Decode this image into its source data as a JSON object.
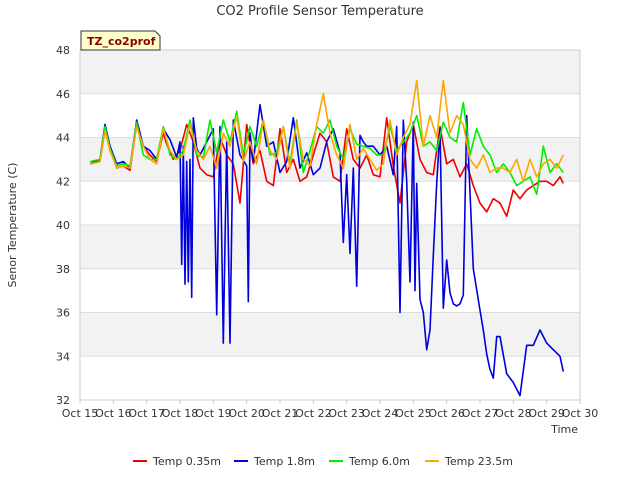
{
  "chart_data": {
    "type": "line",
    "title": "CO2 Profile Sensor Temperature",
    "xlabel": "Time",
    "ylabel": "Senor Temperature (C)",
    "badge": "TZ_co2prof",
    "xlim": [
      0,
      15
    ],
    "ylim": [
      32,
      48
    ],
    "x_ticks": [
      "Oct 15",
      "Oct 16",
      "Oct 17",
      "Oct 18",
      "Oct 19",
      "Oct 20",
      "Oct 21",
      "Oct 22",
      "Oct 23",
      "Oct 24",
      "Oct 25",
      "Oct 26",
      "Oct 27",
      "Oct 28",
      "Oct 29",
      "Oct 30"
    ],
    "y_ticks": [
      32,
      34,
      36,
      38,
      40,
      42,
      44,
      46,
      48
    ],
    "grid": true,
    "legend_position": "bottom",
    "series": [
      {
        "name": "Temp 0.35m",
        "color": "#ee0000",
        "x": [
          0.3,
          0.6,
          0.75,
          0.9,
          1.1,
          1.3,
          1.5,
          1.7,
          1.9,
          2.1,
          2.3,
          2.5,
          2.6,
          2.8,
          3.0,
          3.2,
          3.4,
          3.6,
          3.8,
          4.0,
          4.2,
          4.4,
          4.6,
          4.8,
          5.0,
          5.2,
          5.4,
          5.6,
          5.8,
          6.0,
          6.2,
          6.4,
          6.6,
          6.8,
          7.0,
          7.2,
          7.4,
          7.6,
          7.8,
          8.0,
          8.2,
          8.4,
          8.6,
          8.8,
          9.0,
          9.2,
          9.4,
          9.6,
          9.8,
          10.0,
          10.2,
          10.4,
          10.6,
          10.8,
          11.0,
          11.2,
          11.4,
          11.6,
          11.8,
          12.0,
          12.2,
          12.4,
          12.6,
          12.8,
          13.0,
          13.2,
          13.4,
          13.6,
          13.8,
          14.0,
          14.2,
          14.4,
          14.5
        ],
        "y": [
          42.8,
          42.9,
          44.4,
          43.6,
          42.6,
          42.7,
          42.5,
          44.6,
          43.6,
          43.2,
          42.9,
          44.2,
          43.7,
          43.0,
          43.4,
          44.6,
          43.8,
          42.6,
          42.3,
          42.2,
          44.0,
          43.2,
          42.8,
          41.0,
          44.6,
          42.8,
          43.4,
          42.0,
          41.8,
          44.4,
          42.4,
          43.0,
          42.0,
          42.2,
          43.2,
          44.2,
          43.8,
          42.2,
          42.0,
          44.4,
          43.0,
          42.6,
          43.2,
          42.3,
          42.2,
          44.9,
          42.7,
          41.0,
          43.8,
          44.6,
          43.0,
          42.4,
          42.3,
          44.5,
          42.8,
          43.0,
          42.2,
          42.8,
          41.8,
          41.0,
          40.6,
          41.2,
          41.0,
          40.4,
          41.6,
          41.2,
          41.6,
          41.8,
          42.0,
          42.0,
          41.8,
          42.2,
          41.9
        ]
      },
      {
        "name": "Temp 1.8m",
        "color": "#0000dd",
        "x": [
          0.3,
          0.6,
          0.75,
          0.9,
          1.1,
          1.3,
          1.5,
          1.7,
          1.9,
          2.1,
          2.3,
          2.5,
          2.7,
          2.9,
          3.0,
          3.05,
          3.1,
          3.15,
          3.2,
          3.25,
          3.3,
          3.35,
          3.4,
          3.5,
          3.6,
          3.8,
          4.0,
          4.1,
          4.2,
          4.3,
          4.4,
          4.5,
          4.6,
          4.8,
          5.0,
          5.05,
          5.1,
          5.2,
          5.4,
          5.6,
          5.8,
          6.0,
          6.2,
          6.4,
          6.6,
          6.8,
          7.0,
          7.2,
          7.4,
          7.6,
          7.8,
          7.9,
          8.0,
          8.1,
          8.2,
          8.3,
          8.4,
          8.5,
          8.6,
          8.8,
          9.0,
          9.2,
          9.4,
          9.5,
          9.6,
          9.7,
          9.8,
          9.9,
          10.0,
          10.05,
          10.1,
          10.2,
          10.3,
          10.4,
          10.5,
          10.6,
          10.7,
          10.8,
          10.9,
          11.0,
          11.1,
          11.2,
          11.3,
          11.4,
          11.5,
          11.6,
          11.8,
          12.0,
          12.1,
          12.2,
          12.3,
          12.4,
          12.5,
          12.6,
          12.8,
          13.0,
          13.2,
          13.4,
          13.6,
          13.8,
          14.0,
          14.2,
          14.4,
          14.5
        ],
        "y": [
          42.8,
          43.0,
          44.6,
          43.6,
          42.8,
          42.9,
          42.6,
          44.8,
          43.6,
          43.4,
          43.0,
          44.4,
          43.9,
          43.1,
          43.8,
          38.2,
          43.6,
          37.3,
          42.9,
          37.4,
          43.0,
          36.7,
          44.9,
          43.5,
          43.2,
          43.8,
          44.4,
          35.9,
          44.5,
          34.6,
          43.8,
          34.6,
          44.8,
          43.2,
          42.7,
          36.5,
          44.2,
          42.9,
          45.5,
          43.6,
          43.8,
          42.4,
          42.9,
          44.9,
          42.6,
          43.3,
          42.3,
          42.6,
          43.8,
          44.4,
          43.3,
          39.2,
          42.3,
          38.7,
          42.6,
          37.2,
          44.1,
          43.8,
          43.6,
          43.6,
          43.2,
          43.6,
          42.3,
          44.5,
          36.0,
          44.8,
          42.0,
          37.4,
          44.7,
          37.0,
          41.9,
          36.6,
          36.0,
          34.3,
          35.2,
          38.6,
          41.9,
          44.4,
          36.2,
          38.4,
          36.9,
          36.4,
          36.3,
          36.4,
          36.8,
          45.0,
          38.0,
          36.1,
          35.2,
          34.1,
          33.4,
          33.0,
          34.9,
          34.9,
          33.2,
          32.8,
          32.2,
          34.5,
          34.5,
          35.2,
          34.6,
          34.3,
          34.0,
          33.3
        ]
      },
      {
        "name": "Temp 6.0m",
        "color": "#00ee00",
        "x": [
          0.3,
          0.6,
          0.75,
          0.9,
          1.1,
          1.3,
          1.5,
          1.7,
          1.9,
          2.1,
          2.3,
          2.5,
          2.7,
          2.9,
          3.1,
          3.3,
          3.5,
          3.7,
          3.9,
          4.1,
          4.3,
          4.5,
          4.7,
          4.9,
          5.1,
          5.3,
          5.5,
          5.7,
          5.9,
          6.1,
          6.3,
          6.5,
          6.7,
          6.9,
          7.1,
          7.3,
          7.5,
          7.7,
          7.9,
          8.1,
          8.3,
          8.5,
          8.7,
          8.9,
          9.1,
          9.3,
          9.5,
          9.7,
          9.9,
          10.1,
          10.3,
          10.5,
          10.7,
          10.9,
          11.1,
          11.3,
          11.5,
          11.7,
          11.9,
          12.1,
          12.3,
          12.5,
          12.7,
          12.9,
          13.1,
          13.3,
          13.5,
          13.7,
          13.9,
          14.1,
          14.3,
          14.5
        ],
        "y": [
          42.9,
          43.0,
          44.5,
          43.5,
          42.7,
          42.8,
          42.7,
          44.7,
          43.2,
          43.0,
          43.0,
          44.5,
          43.2,
          43.0,
          43.4,
          44.8,
          43.2,
          43.1,
          44.8,
          43.3,
          44.8,
          43.8,
          45.2,
          43.2,
          44.5,
          43.6,
          44.8,
          43.2,
          43.3,
          44.5,
          42.8,
          44.8,
          42.4,
          43.4,
          44.5,
          44.2,
          44.8,
          43.6,
          43.0,
          44.4,
          43.7,
          43.6,
          43.5,
          43.2,
          43.2,
          44.5,
          43.4,
          43.8,
          44.2,
          45.0,
          43.6,
          43.8,
          43.4,
          44.7,
          44.0,
          43.8,
          45.6,
          43.2,
          44.4,
          43.6,
          43.2,
          42.4,
          42.8,
          42.4,
          41.8,
          42.0,
          42.2,
          41.4,
          43.6,
          42.4,
          42.8,
          42.4
        ]
      },
      {
        "name": "Temp 23.5m",
        "color": "#ffa500",
        "x": [
          0.3,
          0.6,
          0.75,
          0.9,
          1.1,
          1.3,
          1.5,
          1.7,
          1.9,
          2.1,
          2.3,
          2.5,
          2.7,
          2.9,
          3.1,
          3.3,
          3.5,
          3.7,
          3.9,
          4.1,
          4.3,
          4.5,
          4.7,
          4.9,
          5.1,
          5.3,
          5.5,
          5.7,
          5.9,
          6.1,
          6.3,
          6.5,
          6.7,
          6.9,
          7.1,
          7.3,
          7.5,
          7.7,
          7.9,
          8.1,
          8.3,
          8.5,
          8.7,
          8.9,
          9.1,
          9.3,
          9.5,
          9.7,
          9.9,
          10.1,
          10.3,
          10.5,
          10.7,
          10.9,
          11.1,
          11.3,
          11.5,
          11.7,
          11.9,
          12.1,
          12.3,
          12.5,
          12.7,
          12.9,
          13.1,
          13.3,
          13.5,
          13.7,
          13.9,
          14.1,
          14.3,
          14.5
        ],
        "y": [
          42.8,
          42.9,
          44.3,
          43.4,
          42.6,
          42.7,
          42.6,
          44.5,
          43.6,
          43.0,
          42.8,
          44.4,
          43.4,
          43.0,
          43.2,
          44.6,
          43.4,
          43.0,
          43.6,
          42.6,
          44.2,
          43.6,
          45.0,
          42.9,
          43.8,
          42.8,
          44.8,
          43.4,
          43.0,
          44.5,
          42.6,
          44.7,
          43.0,
          42.7,
          44.6,
          46.0,
          44.2,
          43.2,
          42.6,
          44.6,
          43.0,
          43.5,
          43.0,
          42.5,
          42.8,
          44.8,
          43.2,
          44.0,
          44.6,
          46.6,
          43.6,
          45.0,
          44.0,
          46.6,
          44.2,
          45.0,
          44.6,
          43.0,
          42.6,
          43.2,
          42.4,
          42.6,
          42.6,
          42.4,
          43.0,
          42.0,
          43.0,
          42.2,
          42.8,
          43.0,
          42.6,
          43.2
        ]
      }
    ]
  }
}
